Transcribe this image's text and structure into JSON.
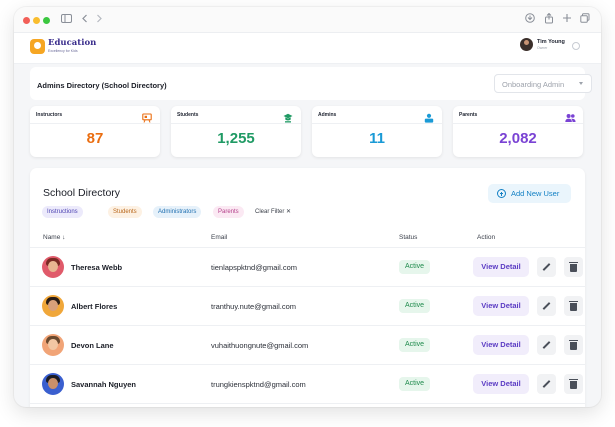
{
  "app": {
    "logo_title": "Education",
    "logo_subtitle": "Excellency for Kids"
  },
  "user": {
    "name": "Tim Young",
    "role": "Owner"
  },
  "page": {
    "title": "Admins Directory (School Directory)",
    "role_select": "Onboarding Admin"
  },
  "stats": [
    {
      "label": "Instructors",
      "value": "87",
      "color": "#ea6d10",
      "icon": "presentation-icon"
    },
    {
      "label": "Students",
      "value": "1,255",
      "color": "#1f9a64",
      "icon": "graduation-cap-icon"
    },
    {
      "label": "Admins",
      "value": "11",
      "color": "#1a9ad6",
      "icon": "person-badge-icon"
    },
    {
      "label": "Parents",
      "value": "2,082",
      "color": "#7a43d4",
      "icon": "users-icon"
    }
  ],
  "directory": {
    "title": "School Directory",
    "add_button": "Add New User",
    "filters": [
      {
        "label": "Instructions",
        "fg": "#4a3fb0",
        "bg": "#eceafb"
      },
      {
        "label": "Students",
        "fg": "#b8661a",
        "bg": "#fdf1e3"
      },
      {
        "label": "Administrators",
        "fg": "#1f6fb0",
        "bg": "#e6f1fa"
      },
      {
        "label": "Parents",
        "fg": "#b43f8a",
        "bg": "#fbe9f3"
      }
    ],
    "clear_filter": "Clear Filter ✕",
    "columns": {
      "name": "Name ↓",
      "email": "Email",
      "status": "Status",
      "action": "Action"
    },
    "rows": [
      {
        "name": "Theresa Webb",
        "email": "tienlapspktnd@gmail.com",
        "status": "Active",
        "action": "View Detail"
      },
      {
        "name": "Albert Flores",
        "email": "tranthuy.nute@gmail.com",
        "status": "Active",
        "action": "View Detail"
      },
      {
        "name": "Devon Lane",
        "email": "vuhaithuongnute@gmail.com",
        "status": "Active",
        "action": "View Detail"
      },
      {
        "name": "Savannah Nguyen",
        "email": "trungkienspktnd@gmail.com",
        "status": "Active",
        "action": "View Detail"
      }
    ]
  }
}
